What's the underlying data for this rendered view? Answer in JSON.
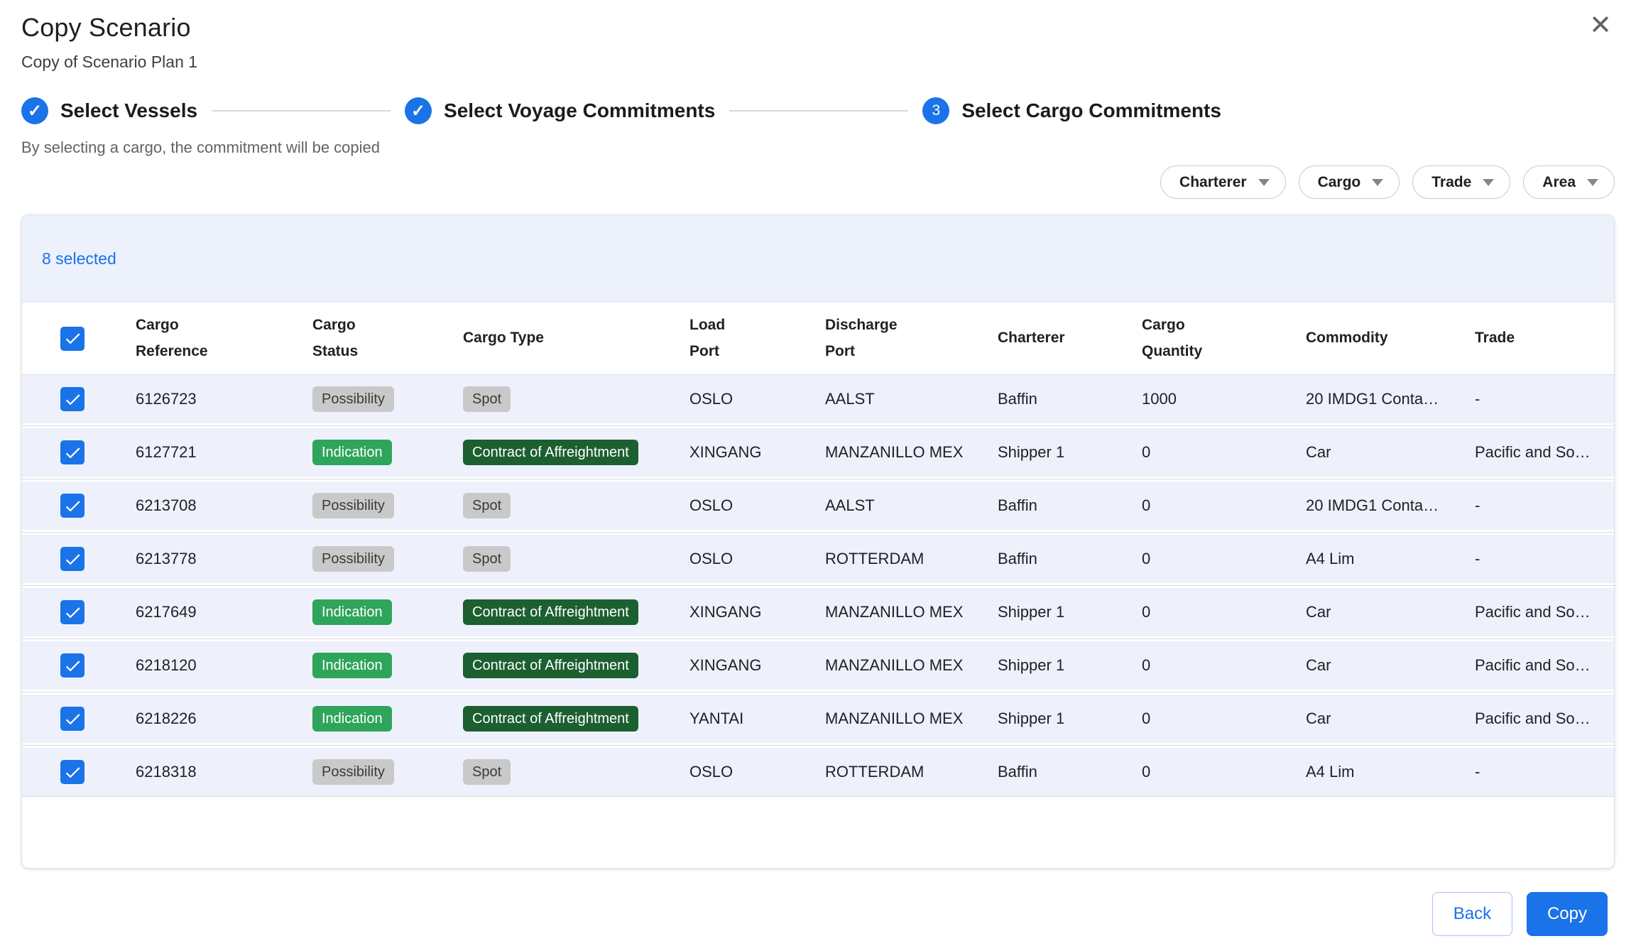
{
  "dialog": {
    "title": "Copy Scenario",
    "subtitle": "Copy of Scenario Plan 1",
    "caption": "By selecting a cargo, the commitment will be copied",
    "close_icon": "✕"
  },
  "stepper": {
    "steps": [
      {
        "label": "Select Vessels",
        "state": "done"
      },
      {
        "label": "Select Voyage Commitments",
        "state": "done"
      },
      {
        "label": "Select Cargo Commitments",
        "state": "current",
        "number": "3"
      }
    ]
  },
  "filters": [
    {
      "label": "Charterer"
    },
    {
      "label": "Cargo"
    },
    {
      "label": "Trade"
    },
    {
      "label": "Area"
    }
  ],
  "table": {
    "selected_text": "8 selected",
    "select_all_checked": true,
    "columns": [
      "Cargo\nReference",
      "Cargo\nStatus",
      "Cargo Type",
      "Load\nPort",
      "Discharge\nPort",
      "Charterer",
      "Cargo\nQuantity",
      "Commodity",
      "Trade"
    ],
    "chip_styles": {
      "Possibility": {
        "bg": "#c9c9c9",
        "fg": "#3b3b3b"
      },
      "Spot": {
        "bg": "#c9c9c9",
        "fg": "#3b3b3b"
      },
      "Indication": {
        "bg": "#2fa45b",
        "fg": "#ffffff"
      },
      "Contract of Affreightment": {
        "bg": "#1c5f31",
        "fg": "#ffffff"
      }
    },
    "rows": [
      {
        "checked": true,
        "reference": "6126723",
        "status": "Possibility",
        "type": "Spot",
        "load_port": "OSLO",
        "discharge_port": "AALST",
        "charterer": "Baffin",
        "quantity": "1000",
        "commodity": "20 IMDG1 Conta…",
        "trade": "-"
      },
      {
        "checked": true,
        "reference": "6127721",
        "status": "Indication",
        "type": "Contract of Affreightment",
        "load_port": "XINGANG",
        "discharge_port": "MANZANILLO MEX",
        "charterer": "Shipper 1",
        "quantity": "0",
        "commodity": "Car",
        "trade": "Pacific and So…"
      },
      {
        "checked": true,
        "reference": "6213708",
        "status": "Possibility",
        "type": "Spot",
        "load_port": "OSLO",
        "discharge_port": "AALST",
        "charterer": "Baffin",
        "quantity": "0",
        "commodity": "20 IMDG1 Conta…",
        "trade": "-"
      },
      {
        "checked": true,
        "reference": "6213778",
        "status": "Possibility",
        "type": "Spot",
        "load_port": "OSLO",
        "discharge_port": "ROTTERDAM",
        "charterer": "Baffin",
        "quantity": "0",
        "commodity": "A4 Lim",
        "trade": "-"
      },
      {
        "checked": true,
        "reference": "6217649",
        "status": "Indication",
        "type": "Contract of Affreightment",
        "load_port": "XINGANG",
        "discharge_port": "MANZANILLO MEX",
        "charterer": "Shipper 1",
        "quantity": "0",
        "commodity": "Car",
        "trade": "Pacific and So…"
      },
      {
        "checked": true,
        "reference": "6218120",
        "status": "Indication",
        "type": "Contract of Affreightment",
        "load_port": "XINGANG",
        "discharge_port": "MANZANILLO MEX",
        "charterer": "Shipper 1",
        "quantity": "0",
        "commodity": "Car",
        "trade": "Pacific and So…"
      },
      {
        "checked": true,
        "reference": "6218226",
        "status": "Indication",
        "type": "Contract of Affreightment",
        "load_port": "YANTAI",
        "discharge_port": "MANZANILLO MEX",
        "charterer": "Shipper 1",
        "quantity": "0",
        "commodity": "Car",
        "trade": "Pacific and So…"
      },
      {
        "checked": true,
        "reference": "6218318",
        "status": "Possibility",
        "type": "Spot",
        "load_port": "OSLO",
        "discharge_port": "ROTTERDAM",
        "charterer": "Baffin",
        "quantity": "0",
        "commodity": "A4 Lim",
        "trade": "-"
      }
    ]
  },
  "footer": {
    "back_label": "Back",
    "copy_label": "Copy"
  },
  "colors": {
    "accent": "#1a73e8",
    "row_bg": "#eef1fb",
    "banner_bg": "#edf1fc"
  }
}
